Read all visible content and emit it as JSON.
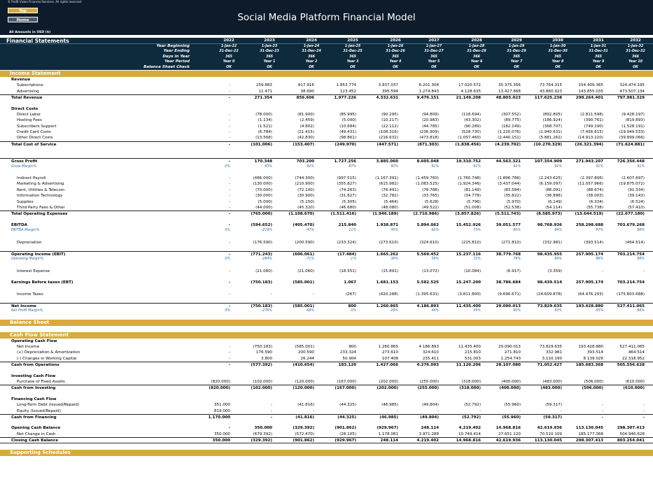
{
  "header": {
    "copyright": "© Profit Vision Financial Services. All rights reserved.",
    "title": "Social Media Platform Financial Model",
    "amounts_note": "All Amounts in  USD ($)"
  },
  "nav": {
    "top": "Top",
    "home": "Home"
  },
  "band": {
    "label": "Financial Statements",
    "years": [
      "2022",
      "2023",
      "2024",
      "2025",
      "2026",
      "2027",
      "2028",
      "2029",
      "2030",
      "2031",
      "2032"
    ]
  },
  "meta": [
    {
      "label": "Year Beginning",
      "vals": [
        "1-Jan-22",
        "1-Jan-23",
        "1-Jan-24",
        "1-Jan-25",
        "1-Jan-26",
        "1-Jan-27",
        "1-Jan-28",
        "1-Jan-29",
        "1-Jan-30",
        "1-Jan-31",
        "1-Jan-32"
      ]
    },
    {
      "label": "Year Ending",
      "vals": [
        "31-Dec-22",
        "31-Dec-23",
        "31-Dec-24",
        "31-Dec-25",
        "31-Dec-26",
        "31-Dec-27",
        "31-Dec-28",
        "31-Dec-29",
        "31-Dec-30",
        "31-Dec-31",
        "31-Dec-32"
      ]
    },
    {
      "label": "Days in Year",
      "vals": [
        "365",
        "365",
        "366",
        "365",
        "365",
        "365",
        "366",
        "365",
        "365",
        "365",
        "366"
      ]
    },
    {
      "label": "Year Period",
      "vals": [
        "Year 0",
        "Year 1",
        "Year 2",
        "Year 3",
        "Year 4",
        "Year 5",
        "Year 6",
        "Year 7",
        "Year 8",
        "Year 9",
        "Year 10"
      ]
    },
    {
      "label": "Balance Sheet Check",
      "vals": [
        "OK",
        "OK",
        "OK",
        "OK",
        "OK",
        "OK",
        "OK",
        "OK",
        "OK",
        "OK",
        "OK"
      ]
    }
  ],
  "sections": {
    "income": "Income Statement",
    "balance": "Balance Sheet",
    "cashflow": "Cash Flow Statement",
    "support": "Supporting Schedules"
  },
  "income_rows": [
    {
      "t": "b",
      "label": "Revenue"
    },
    {
      "t": "i",
      "label": "Subscriptions",
      "vals": [
        "-",
        "259.883",
        "817.916",
        "1.853.774",
        "3.937.037",
        "8.201.308",
        "17.020.572",
        "35.375.356",
        "73.764.315",
        "154.409.365",
        "324.474.195"
      ]
    },
    {
      "t": "i",
      "label": "Advertising",
      "vals": [
        "-",
        "11.471",
        "38.690",
        "123.452",
        "395.594",
        "1.274.843",
        "4.128.635",
        "13.427.668",
        "43.860.923",
        "143.855.035",
        "473.507.134"
      ]
    },
    {
      "t": "bt",
      "label": "Total Revenue",
      "vals": [
        "-",
        "271.354",
        "856.606",
        "1.977.226",
        "4.332.631",
        "9.476.151",
        "21.149.208",
        "48.803.023",
        "117.625.238",
        "298.264.401",
        "797.981.329"
      ]
    },
    {
      "t": "sp"
    },
    {
      "t": "b",
      "label": "Direct Costs"
    },
    {
      "t": "i",
      "label": "Direct Labor",
      "vals": [
        "-",
        "(78.000)",
        "(81.900)",
        "(85.995)",
        "(90.295)",
        "(94.809)",
        "(118.694)",
        "(307.552)",
        "(892.805)",
        "(2.811.598)",
        "(9.428.197)"
      ]
    },
    {
      "t": "i",
      "label": "Hosting Fees",
      "vals": [
        "-",
        "(1.134)",
        "(2.459)",
        "(5.000)",
        "(10.217)",
        "(20.983)",
        "(43.302)",
        "(89.775)",
        "(186.924)",
        "(390.761)",
        "(819.893)"
      ]
    },
    {
      "t": "i",
      "label": "Subscribers Support",
      "vals": [
        "-",
        "(1.521)",
        "(4.802)",
        "(10.684)",
        "(22.112)",
        "(44.785)",
        "(90.289)",
        "(182.149)",
        "(368.707)",
        "(749.190)",
        "(1.528.191)"
      ]
    },
    {
      "t": "i",
      "label": "Credit Card Costs",
      "vals": [
        "-",
        "(6.784)",
        "(21.415)",
        "(49.431)",
        "(108.316)",
        "(236.909)",
        "(528.730)",
        "(1.220.076)",
        "(2.940.631)",
        "(7.456.615)",
        "(19.949.533)"
      ]
    },
    {
      "t": "i",
      "label": "Other Direct Costs",
      "vals": [
        "-",
        "(13.568)",
        "(42.830)",
        "(98.861)",
        "(216.632)",
        "(473.818)",
        "(1.057.460)",
        "(2.440.151)",
        "(5.881.262)",
        "(14.913.220)",
        "(39.899.066)"
      ]
    },
    {
      "t": "bt",
      "label": "Total Cost of Service",
      "vals": [
        "-",
        "(101.006)",
        "(153.407)",
        "(249.970)",
        "(447.571)",
        "(871.303)",
        "(1.838.456)",
        "(4.239.702)",
        "(10.270.329)",
        "(26.321.394)",
        "(71.624.881)"
      ]
    },
    {
      "t": "spl"
    },
    {
      "t": "bt",
      "label": "Gross Profit",
      "vals": [
        "-",
        "170.348",
        "703.200",
        "1.727.256",
        "3.885.060",
        "8.605.048",
        "19.310.752",
        "44.563.321",
        "107.354.909",
        "271.943.207",
        "726.356.448"
      ]
    },
    {
      "t": "it",
      "label": "Gross Margin%",
      "vals": [
        "0%",
        "63%",
        "82%",
        "87%",
        "90%",
        "91%",
        "91%",
        "91%",
        "91%",
        "91%",
        "91%"
      ]
    },
    {
      "t": "sp"
    },
    {
      "t": "i",
      "label": "Indirect Payroll",
      "vals": [
        "-",
        "(486.000)",
        "(744.300)",
        "(997.515)",
        "(1.167.391)",
        "(1.459.760)",
        "(1.760.748)",
        "(1.896.786)",
        "(2.243.625)",
        "(2.397.806)",
        "(2.607.697)"
      ]
    },
    {
      "t": "i",
      "label": "Marketing & Advertising",
      "vals": [
        "-",
        "(130.000)",
        "(210.900)",
        "(355.827)",
        "(615.982)",
        "(1.083.525)",
        "(1.924.346)",
        "(3.437.044)",
        "(6.159.097)",
        "(11.057.966)",
        "(19.875.072)"
      ]
    },
    {
      "t": "i",
      "label": "Rent, Utilities & Telecom",
      "vals": [
        "-",
        "(70.000)",
        "(72.100)",
        "(74.263)",
        "(76.491)",
        "(78.786)",
        "(81.149)",
        "(83.584)",
        "(86.091)",
        "(88.674)",
        "(91.334)"
      ]
    },
    {
      "t": "i",
      "label": "Information Technology",
      "vals": [
        "-",
        "(30.000)",
        "(30.900)",
        "(31.827)",
        "(32.782)",
        "(33.765)",
        "(34.778)",
        "(35.822)",
        "(36.896)",
        "(38.003)",
        "(39.143)"
      ]
    },
    {
      "t": "i",
      "label": "Supplies",
      "vals": [
        "-",
        "(5.000)",
        "(5.150)",
        "(5.305)",
        "(5.464)",
        "(5.628)",
        "(5.796)",
        "(5.970)",
        "(6.149)",
        "(6.334)",
        "(6.524)"
      ]
    },
    {
      "t": "i",
      "label": "Third Party Fees & Other",
      "vals": [
        "-",
        "(44.000)",
        "(45.320)",
        "(46.680)",
        "(48.080)",
        "(49.522)",
        "(51.008)",
        "(52.538)",
        "(54.114)",
        "(55.738)",
        "(57.410)"
      ]
    },
    {
      "t": "bt",
      "label": "Total Operating Expenses",
      "vals": [
        "-",
        "(765.000)",
        "(1.108.670)",
        "(1.511.416)",
        "(1.946.189)",
        "(2.710.986)",
        "(3.857.826)",
        "(5.511.743)",
        "(8.585.973)",
        "(13.644.519)",
        "(22.677.180)"
      ]
    },
    {
      "t": "sp"
    },
    {
      "t": "b",
      "label": "EBITDA",
      "vals": [
        "-",
        "(594.652)",
        "(405.470)",
        "215.840",
        "1.938.871",
        "5.894.062",
        "15.452.926",
        "39.051.577",
        "98.768.936",
        "258.298.688",
        "703.679.268"
      ]
    },
    {
      "t": "it",
      "label": "EBITDA Margin%",
      "vals": [
        "0%",
        "-219%",
        "-47%",
        "11%",
        "45%",
        "62%",
        "73%",
        "80%",
        "84%",
        "87%",
        "88%"
      ]
    },
    {
      "t": "sp"
    },
    {
      "t": "i",
      "label": "Depreciation",
      "vals": [
        "-",
        "(176.590)",
        "(200.590)",
        "(233.324)",
        "(273.610)",
        "(324.610)",
        "(215.810)",
        "(271.810)",
        "(332.981)",
        "(393.514)",
        "(464.514)"
      ]
    },
    {
      "t": "sp"
    },
    {
      "t": "bt",
      "label": "Operating Income (EBIT)",
      "vals": [
        "-",
        "(771.243)",
        "(606.061)",
        "(17.484)",
        "1.665.262",
        "5.569.452",
        "15.237.116",
        "38.779.768",
        "98.435.955",
        "257.905.174",
        "703.214.754"
      ]
    },
    {
      "t": "it",
      "label": "Operating Margin%",
      "vals": [
        "0%",
        "-284%",
        "-71%",
        "-1%",
        "38%",
        "59%",
        "72%",
        "79%",
        "84%",
        "86%",
        "88%"
      ]
    },
    {
      "t": "sp"
    },
    {
      "t": "i",
      "label": "Interest Expense",
      "vals": [
        "-",
        "(21.060)",
        "(21.060)",
        "(18.551)",
        "(15.891)",
        "(13.072)",
        "(10.084)",
        "(6.917)",
        "(3.359)",
        "-",
        "-"
      ]
    },
    {
      "t": "sp"
    },
    {
      "t": "b",
      "label": "Earnings Before taxes (EBT)",
      "vals": [
        "-",
        "(750.183)",
        "(585.001)",
        "1.067",
        "1.681.153",
        "5.582.525",
        "15.247.200",
        "38.786.684",
        "98.439.514",
        "257.905.174",
        "703.214.754"
      ]
    },
    {
      "t": "sp"
    },
    {
      "t": "i",
      "label": "Income Taxes",
      "vals": [
        "-",
        "-",
        "-",
        "(267)",
        "(420.288)",
        "(1.395.631)",
        "(3.811.800)",
        "(9.696.671)",
        "(24.609.878)",
        "(64.476.293)",
        "(175.803.688)"
      ]
    },
    {
      "t": "sp"
    },
    {
      "t": "bt",
      "label": "Net Income",
      "vals": [
        "-",
        "(750.183)",
        "(585.001)",
        "800",
        "1.260.865",
        "4.186.893",
        "11.435.400",
        "29.090.013",
        "73.829.635",
        "193.428.880",
        "527.411.065"
      ]
    },
    {
      "t": "it",
      "label": "Net Profit Margin%",
      "vals": [
        "0%",
        "-276%",
        "-68%",
        "0%",
        "29%",
        "44%",
        "54%",
        "60%",
        "63%",
        "65%",
        "66%"
      ]
    }
  ],
  "cash_rows": [
    {
      "t": "b",
      "label": "Operating Cash Flow"
    },
    {
      "t": "i",
      "label": "Net Income",
      "vals": [
        "-",
        "(750.183)",
        "(585.001)",
        "800",
        "1.260.865",
        "4.186.893",
        "11.435.400",
        "29.090.013",
        "73.829.635",
        "193.428.880",
        "527.411.065"
      ]
    },
    {
      "t": "i",
      "label": "(+) Depreciation & Amortization",
      "vals": [
        "-",
        "176.590",
        "200.590",
        "233.324",
        "273.610",
        "324.610",
        "215.810",
        "271.810",
        "332.981",
        "393.514",
        "464.514"
      ]
    },
    {
      "t": "i",
      "label": "(-) Changes in Working Capital",
      "vals": [
        "-",
        "3.800",
        "26.244",
        "50.904",
        "107.408",
        "235.411",
        "531.003",
        "1.254.743",
        "3.110.190",
        "8.139.026",
        "22.318.952"
      ]
    },
    {
      "t": "bt",
      "label": "Cash from Operations",
      "vals": [
        "-",
        "(577.392)",
        "(410.654)",
        "183.120",
        "1.427.066",
        "4.276.093",
        "11.120.206",
        "28.107.080",
        "71.052.427",
        "185.683.368",
        "505.556.628"
      ]
    },
    {
      "t": "sp"
    },
    {
      "t": "b",
      "label": "Investing Cash Flow"
    },
    {
      "t": "i",
      "label": "Purchase of Fixed Assets",
      "vals": [
        "(820.000)",
        "(102.000)",
        "(120.000)",
        "(167.000)",
        "(202.000)",
        "(255.000)",
        "(318.000)",
        "(400.000)",
        "(483.000)",
        "(506.000)",
        "(610.000)"
      ]
    },
    {
      "t": "bt",
      "label": "Cash from Investing",
      "vals": [
        "(820.000)",
        "(102.000)",
        "(120.000)",
        "(167.000)",
        "(202.000)",
        "(255.000)",
        "(318.000)",
        "(400.000)",
        "(483.000)",
        "(506.000)",
        "(610.000)"
      ]
    },
    {
      "t": "sp"
    },
    {
      "t": "b",
      "label": "Financing Cash Flow"
    },
    {
      "t": "i",
      "label": "Long-Term Debt (Issued/Repaid)",
      "vals": [
        "351.000",
        "-",
        "(41.816)",
        "(44.325)",
        "(46.985)",
        "(49.804)",
        "(52.792)",
        "(55.960)",
        "(59.317)",
        "-",
        "-"
      ]
    },
    {
      "t": "i",
      "label": "Equity (Issued/Repaid)",
      "vals": [
        "819.000",
        "-",
        "-",
        "-",
        "-",
        "-",
        "-",
        "-",
        "-",
        "-",
        "-"
      ]
    },
    {
      "t": "bt",
      "label": "Cash from Financing",
      "vals": [
        "1.170.000",
        "-",
        "(41.816)",
        "(44.325)",
        "(46.985)",
        "(49.804)",
        "(52.792)",
        "(55.960)",
        "(59.317)",
        "-",
        "-"
      ]
    },
    {
      "t": "sp"
    },
    {
      "t": "b",
      "label": "Opening Cash Balance",
      "vals": [
        "-",
        "350.000",
        "(329.392)",
        "(901.862)",
        "(929.967)",
        "248.114",
        "4.219.402",
        "14.968.816",
        "42.619.936",
        "113.130.045",
        "298.307.413"
      ]
    },
    {
      "t": "i",
      "label": "Net Change in Cash",
      "vals": [
        "350.000",
        "(679.392)",
        "(572.470)",
        "(28.105)",
        "1.178.081",
        "3.971.288",
        "10.749.414",
        "27.651.120",
        "70.510.109",
        "185.177.368",
        "504.946.628"
      ]
    },
    {
      "t": "btb",
      "label": "Closing Cash Balance",
      "vals": [
        "350.000",
        "(329.392)",
        "(901.862)",
        "(929.967)",
        "248.114",
        "4.219.402",
        "14.968.816",
        "42.619.936",
        "113.130.045",
        "298.307.413",
        "803.254.041"
      ]
    }
  ]
}
